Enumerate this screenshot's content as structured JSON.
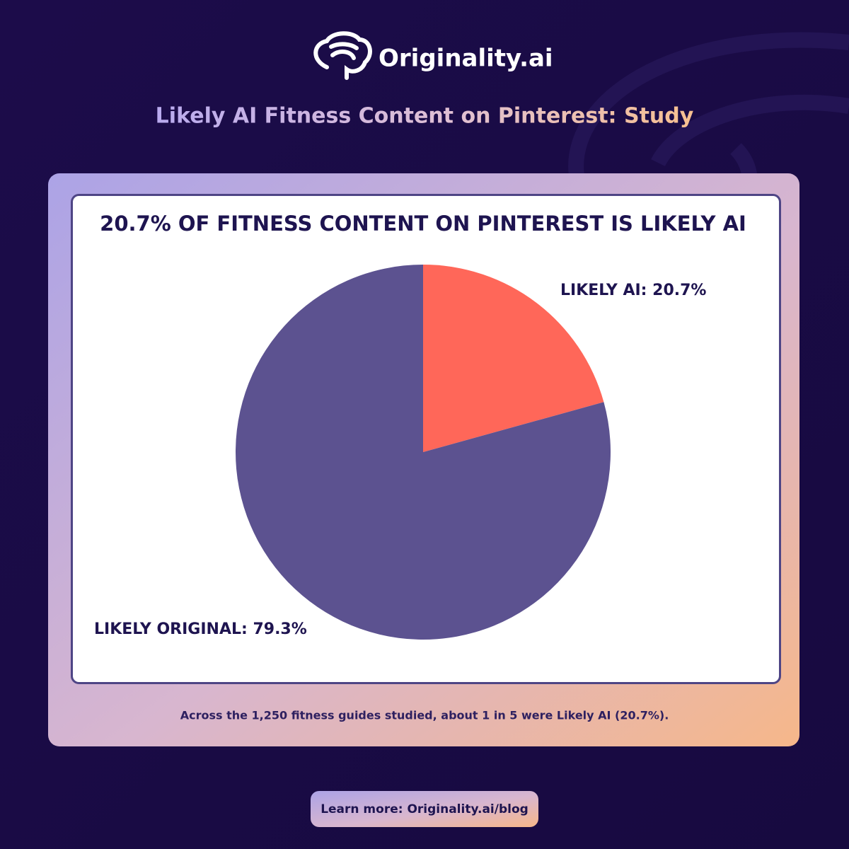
{
  "header": {
    "brand": "Originality.ai",
    "title": "Likely AI Fitness Content on Pinterest: Study"
  },
  "chart_data": {
    "type": "pie",
    "title": "20.7% OF FITNESS CONTENT ON PINTEREST IS LIKELY AI",
    "values": [
      20.7,
      79.3
    ],
    "value_labels": [
      "LIKELY AI: 20.7%",
      "LIKELY ORIGINAL: 79.3%"
    ],
    "colors": [
      "#ff6759",
      "#5c5290"
    ]
  },
  "caption": "Across the 1,250 fitness guides studied, about 1 in 5 were Likely AI (20.7%).",
  "footer_link": "Learn more: Originality.ai/blog"
}
